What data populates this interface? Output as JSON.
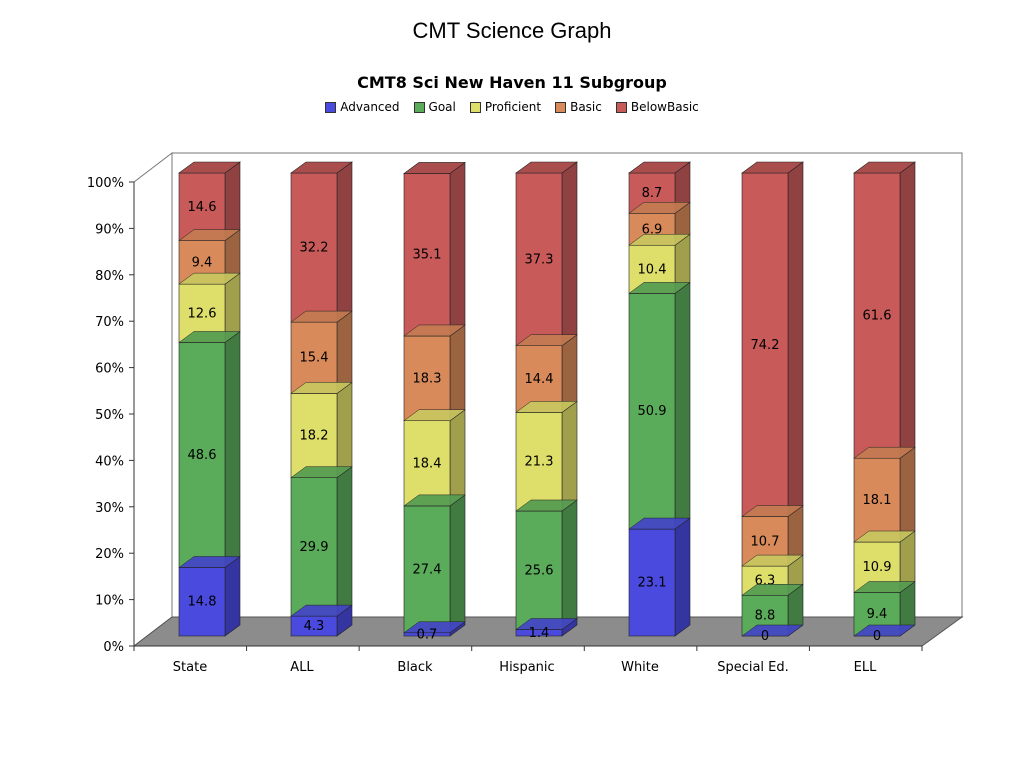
{
  "slide": {
    "title": "CMT Science Graph"
  },
  "chart_data": {
    "type": "bar",
    "stacked": "percent",
    "three_d": true,
    "title": "CMT8 Sci New Haven 11 Subgroup",
    "categories": [
      "State",
      "ALL",
      "Black",
      "Hispanic",
      "White",
      "Special Ed.",
      "ELL"
    ],
    "series": [
      {
        "name": "Advanced",
        "color": "#4a4adf",
        "values": [
          14.8,
          4.3,
          0.7,
          1.4,
          23.1,
          0,
          0
        ],
        "labels": [
          "14.8",
          "4.3",
          "0.7",
          "1.4",
          "23.1",
          "0",
          "0"
        ]
      },
      {
        "name": "Goal",
        "color": "#5aab5a",
        "values": [
          48.6,
          29.9,
          27.4,
          25.6,
          50.9,
          8.8,
          9.4
        ],
        "labels": [
          "48.6",
          "29.9",
          "27.4",
          "25.6",
          "50.9",
          "8.8",
          "9.4"
        ]
      },
      {
        "name": "Proficient",
        "color": "#dede6a",
        "values": [
          12.6,
          18.2,
          18.4,
          21.3,
          10.4,
          6.3,
          10.9
        ],
        "labels": [
          "12.6",
          "18.2",
          "18.4",
          "21.3",
          "10.4",
          "6.3",
          "10.9"
        ]
      },
      {
        "name": "Basic",
        "color": "#d98a5a",
        "values": [
          9.4,
          15.4,
          18.3,
          14.4,
          6.9,
          10.7,
          18.1
        ],
        "labels": [
          "9.4",
          "15.4",
          "18.3",
          "14.4",
          "6.9",
          "10.7",
          "18.1"
        ]
      },
      {
        "name": "BelowBasic",
        "color": "#c85a5a",
        "values": [
          14.6,
          32.2,
          35.1,
          37.3,
          8.7,
          74.2,
          61.6
        ],
        "labels": [
          "14.6",
          "32.2",
          "35.1",
          "37.3",
          "8.7",
          "74.2",
          "61.6"
        ]
      }
    ],
    "y_ticks": [
      "0%",
      "10%",
      "20%",
      "30%",
      "40%",
      "50%",
      "60%",
      "70%",
      "80%",
      "90%",
      "100%"
    ],
    "ylim": [
      0,
      100
    ],
    "legend_position": "top",
    "grid": false
  }
}
